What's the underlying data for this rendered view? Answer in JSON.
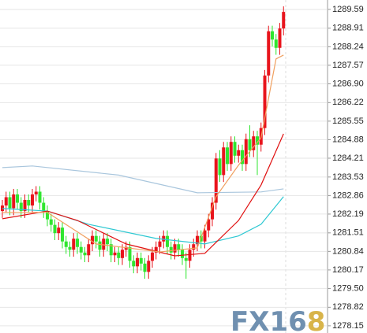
{
  "chart_data": {
    "type": "candlestick",
    "ylim": [
      1277.89,
      1289.93
    ],
    "yticks": [
      1289.59,
      1288.91,
      1288.24,
      1287.57,
      {
        "value": 1286.9,
        "label": "1286.90"
      },
      1286.22,
      1285.55,
      1284.88,
      1284.21,
      1283.53,
      1282.86,
      1282.19,
      1281.51,
      1280.84,
      1280.17,
      {
        "value": 1279.5,
        "label": "1279.50"
      },
      1278.82,
      1278.15
    ],
    "grid": true,
    "up_color": "#e8141c",
    "down_color": "#2fe62f",
    "open": [
      1282.3,
      1282.5,
      1282.8,
      1282.4,
      1282.9,
      1282.6,
      1282.3,
      1282.7,
      1282.5,
      1282.9,
      1283.0,
      1282.6,
      1282.3,
      1282.0,
      1281.8,
      1281.5,
      1281.7,
      1281.2,
      1281.0,
      1280.9,
      1281.3,
      1281.0,
      1280.8,
      1280.7,
      1281.1,
      1281.4,
      1281.2,
      1280.9,
      1281.3,
      1281.1,
      1280.7,
      1280.8,
      1280.6,
      1280.9,
      1281.0,
      1280.5,
      1280.3,
      1280.6,
      1280.4,
      1280.1,
      1280.5,
      1280.8,
      1281.0,
      1281.2,
      1281.4,
      1281.0,
      1280.8,
      1281.1,
      1280.9,
      1280.6,
      1280.5,
      1280.9,
      1281.1,
      1281.4,
      1281.2,
      1281.6,
      1282.0,
      1282.6,
      1284.2,
      1283.6,
      1284.6,
      1284.0,
      1284.8,
      1284.3,
      1284.5,
      1284.0,
      1284.9,
      1284.5,
      1285.0,
      1284.7,
      1285.3,
      1287.2,
      1288.8,
      1288.5,
      1288.2,
      1288.9
    ],
    "high": [
      1282.7,
      1283.0,
      1283.0,
      1283.1,
      1283.1,
      1282.8,
      1282.9,
      1282.9,
      1283.1,
      1283.2,
      1283.2,
      1282.8,
      1282.5,
      1282.2,
      1282.0,
      1281.9,
      1281.9,
      1281.4,
      1281.2,
      1281.5,
      1281.5,
      1281.2,
      1281.0,
      1281.3,
      1281.6,
      1281.6,
      1281.4,
      1281.5,
      1281.5,
      1281.3,
      1281.0,
      1281.0,
      1281.1,
      1281.2,
      1281.2,
      1280.7,
      1280.8,
      1280.8,
      1280.6,
      1280.7,
      1281.0,
      1281.2,
      1281.4,
      1281.6,
      1281.6,
      1281.2,
      1281.3,
      1281.3,
      1281.1,
      1280.8,
      1281.1,
      1281.3,
      1281.6,
      1281.6,
      1281.8,
      1282.2,
      1282.8,
      1284.4,
      1284.5,
      1284.8,
      1284.8,
      1285.0,
      1285.0,
      1284.7,
      1284.7,
      1285.1,
      1285.4,
      1285.2,
      1285.2,
      1285.5,
      1287.4,
      1289.0,
      1289.0,
      1288.7,
      1289.1,
      1289.7
    ],
    "low": [
      1282.05,
      1282.25,
      1282.15,
      1282.15,
      1282.35,
      1282.05,
      1282.05,
      1282.25,
      1282.25,
      1282.65,
      1282.35,
      1282.05,
      1281.75,
      1281.55,
      1281.25,
      1281.25,
      1280.95,
      1280.75,
      1280.65,
      1280.65,
      1280.75,
      1280.55,
      1280.45,
      1280.45,
      1280.85,
      1280.95,
      1280.65,
      1280.65,
      1280.85,
      1280.45,
      1280.45,
      1280.35,
      1280.35,
      1280.65,
      1280.25,
      1280.05,
      1280.05,
      1280.15,
      1279.85,
      1279.85,
      1280.25,
      1280.55,
      1280.75,
      1280.95,
      1280.75,
      1280.55,
      1280.55,
      1280.65,
      1280.35,
      1279.85,
      1280.25,
      1280.65,
      1280.85,
      1280.95,
      1280.95,
      1281.35,
      1281.75,
      1282.35,
      1283.35,
      1283.35,
      1283.75,
      1283.75,
      1284.05,
      1284.05,
      1283.75,
      1283.75,
      1284.25,
      1284.25,
      1283.6,
      1284.45,
      1285.05,
      1286.95,
      1288.25,
      1287.95,
      1287.95,
      1288.65
    ],
    "close": [
      1282.5,
      1282.8,
      1282.4,
      1282.9,
      1282.6,
      1282.3,
      1282.7,
      1282.5,
      1282.9,
      1283.0,
      1282.6,
      1282.3,
      1282.0,
      1281.8,
      1281.5,
      1281.7,
      1281.2,
      1281.0,
      1280.9,
      1281.3,
      1281.0,
      1280.8,
      1280.7,
      1281.1,
      1281.4,
      1281.2,
      1280.9,
      1281.3,
      1281.1,
      1280.7,
      1280.8,
      1280.6,
      1280.9,
      1281.0,
      1280.5,
      1280.3,
      1280.6,
      1280.4,
      1280.1,
      1280.5,
      1280.8,
      1281.0,
      1281.2,
      1281.4,
      1281.0,
      1280.8,
      1281.1,
      1280.9,
      1280.6,
      1280.5,
      1280.9,
      1281.1,
      1281.4,
      1281.2,
      1281.6,
      1282.0,
      1282.6,
      1284.2,
      1283.6,
      1284.6,
      1284.0,
      1284.8,
      1284.3,
      1284.5,
      1284.0,
      1284.9,
      1284.5,
      1285.0,
      1284.7,
      1285.3,
      1287.2,
      1288.8,
      1288.5,
      1288.2,
      1288.9,
      1289.5
    ],
    "series": [
      {
        "color": "#a9c6dd",
        "x": [
          0,
          8,
          31,
          52,
          69,
          75
        ],
        "values": [
          1283.87,
          1283.93,
          1283.6,
          1282.96,
          1282.99,
          1283.1
        ]
      },
      {
        "color": "#2ec8d2",
        "x": [
          0,
          12,
          23,
          41,
          54,
          63,
          69,
          75
        ],
        "values": [
          1282.39,
          1282.3,
          1281.82,
          1281.31,
          1281.11,
          1281.4,
          1281.82,
          1282.82
        ]
      },
      {
        "color": "#e01010",
        "x": [
          0,
          12,
          20,
          33,
          46,
          54,
          63,
          69,
          75
        ],
        "values": [
          1282.02,
          1282.3,
          1281.96,
          1281.11,
          1280.68,
          1280.77,
          1281.96,
          1283.24,
          1285.09
        ]
      },
      {
        "color": "#f0a060",
        "x": [
          0,
          12,
          25,
          42,
          52,
          57,
          63,
          69,
          73,
          75
        ],
        "values": [
          1282.25,
          1282.25,
          1281.11,
          1280.82,
          1280.97,
          1282.82,
          1283.96,
          1284.95,
          1287.8,
          1287.94
        ]
      }
    ],
    "watermark": {
      "text": "FX16",
      "accent": "8"
    }
  }
}
